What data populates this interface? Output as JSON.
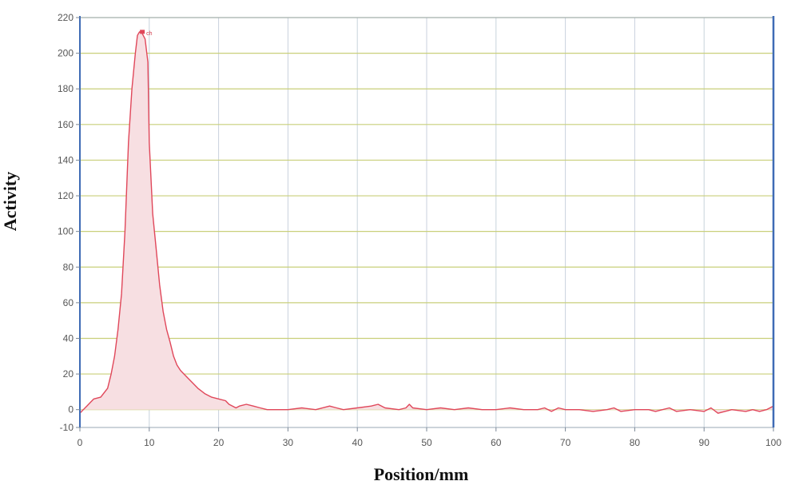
{
  "chart_data": {
    "type": "area",
    "xlabel": "Position/mm",
    "ylabel": "Activity",
    "xlim": [
      0,
      100
    ],
    "ylim": [
      -10,
      220
    ],
    "x_ticks": [
      0,
      10,
      20,
      30,
      40,
      50,
      60,
      70,
      80,
      90,
      100
    ],
    "y_ticks": [
      -10,
      0,
      20,
      40,
      60,
      80,
      100,
      120,
      140,
      160,
      180,
      200,
      220
    ],
    "grid": true,
    "colors": {
      "line": "#e0475a",
      "fill": "#f7dfe2",
      "horizontal_grid": "#c9cf7a",
      "vertical_grid": "#c8d2dc",
      "frame": "#3f6bb5"
    },
    "peak": {
      "label": "ch",
      "x": 9.0,
      "y": 212
    },
    "series": [
      {
        "x": [
          0,
          0.5,
          1,
          1.5,
          2,
          3,
          4,
          4.5,
          5,
          5.5,
          6,
          6.5,
          7,
          7.5,
          8,
          8.3,
          8.6,
          9,
          9.4,
          9.8,
          10,
          10.5,
          11,
          11.5,
          12,
          12.5,
          13,
          13.5,
          14,
          14.5,
          15,
          16,
          17,
          18,
          19,
          20,
          21,
          21.5,
          22,
          22.5,
          23,
          24,
          25,
          26,
          27,
          28,
          30,
          32,
          34,
          36,
          37,
          38,
          40,
          42,
          43,
          44,
          46,
          47,
          47.5,
          48,
          50,
          52,
          54,
          56,
          58,
          60,
          62,
          64,
          66,
          67,
          68,
          69,
          70,
          72,
          74,
          76,
          77,
          78,
          80,
          82,
          83,
          84,
          85,
          86,
          88,
          90,
          91,
          92,
          94,
          96,
          97,
          98,
          99,
          100
        ],
        "y": [
          -2,
          0,
          2,
          4,
          6,
          7,
          12,
          20,
          30,
          45,
          65,
          100,
          150,
          180,
          200,
          210,
          212,
          211,
          208,
          195,
          150,
          110,
          90,
          70,
          55,
          45,
          38,
          30,
          25,
          22,
          20,
          16,
          12,
          9,
          7,
          6,
          5,
          3,
          2,
          1,
          2,
          3,
          2,
          1,
          0,
          0,
          0,
          1,
          0,
          2,
          1,
          0,
          1,
          2,
          3,
          1,
          0,
          1,
          3,
          1,
          0,
          1,
          0,
          1,
          0,
          0,
          1,
          0,
          0,
          1,
          -1,
          1,
          0,
          0,
          -1,
          0,
          1,
          -1,
          0,
          0,
          -1,
          0,
          1,
          -1,
          0,
          -1,
          1,
          -2,
          0,
          -1,
          0,
          -1,
          0,
          2
        ]
      }
    ]
  }
}
